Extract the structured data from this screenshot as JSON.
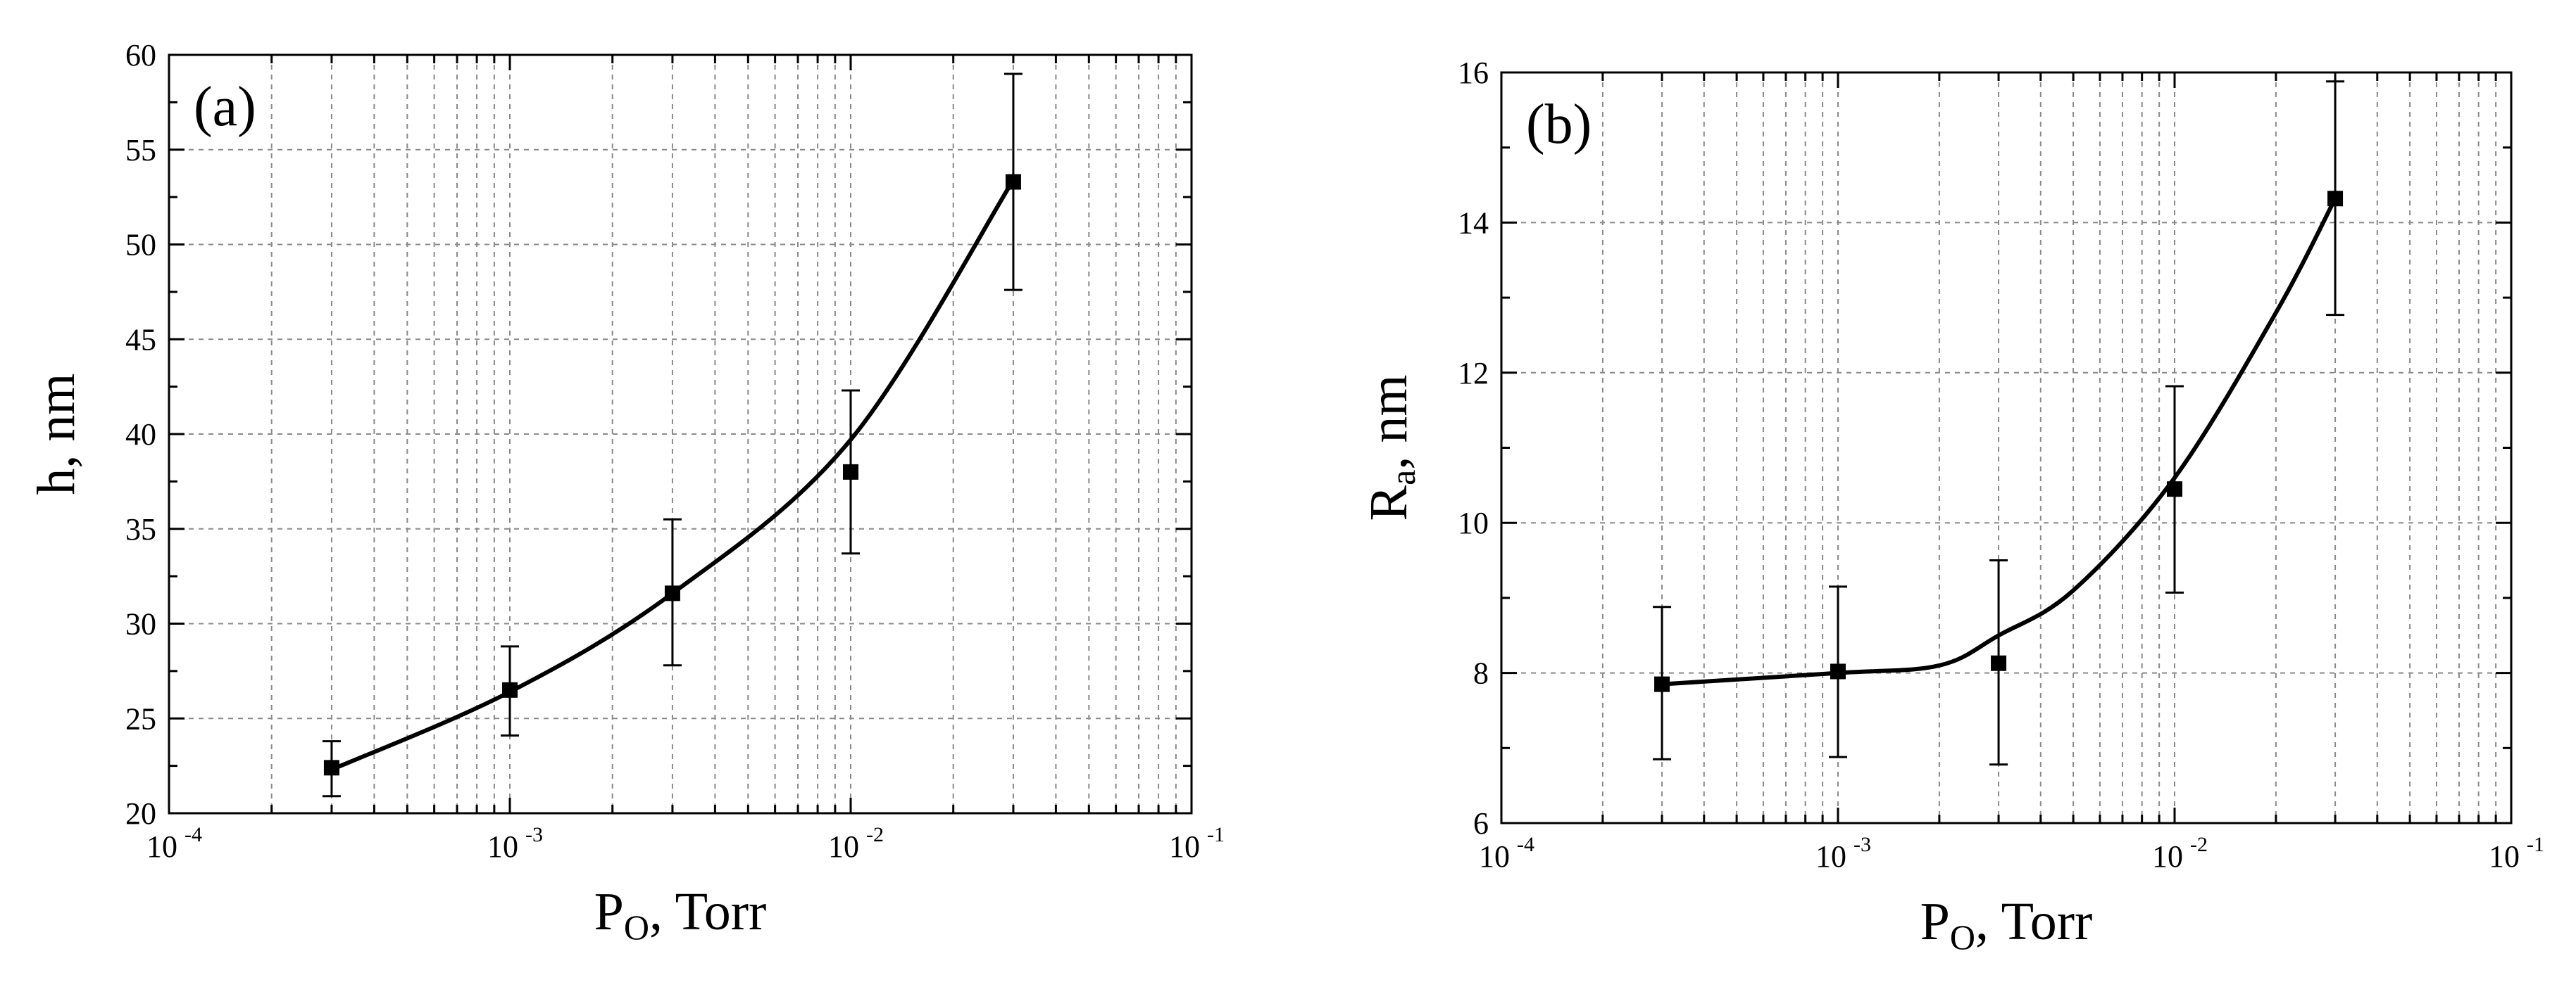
{
  "figure": {
    "panels": [
      {
        "panel_label": "(a)",
        "x_label": {
          "main": "P",
          "sub": "O",
          "rest": ", Torr"
        },
        "y_label": {
          "main": "h, nm",
          "sub": "",
          "rest": ""
        },
        "x_tick_labels": [
          {
            "base": "10",
            "exp": "-4"
          },
          {
            "base": "10",
            "exp": "-3"
          },
          {
            "base": "10",
            "exp": "-2"
          },
          {
            "base": "10",
            "exp": "-1"
          }
        ],
        "y_tick_labels": [
          "20",
          "25",
          "30",
          "35",
          "40",
          "45",
          "50",
          "55",
          "60"
        ]
      },
      {
        "panel_label": "(b)",
        "x_label": {
          "main": "P",
          "sub": "O",
          "rest": ", Torr"
        },
        "y_label": {
          "main": "R",
          "sub": "a",
          "rest": ", nm"
        },
        "x_tick_labels": [
          {
            "base": "10",
            "exp": "-4"
          },
          {
            "base": "10",
            "exp": "-3"
          },
          {
            "base": "10",
            "exp": "-2"
          },
          {
            "base": "10",
            "exp": "-1"
          }
        ],
        "y_tick_labels": [
          "6",
          "8",
          "10",
          "12",
          "14",
          "16"
        ]
      }
    ]
  },
  "chart_data": [
    {
      "type": "scatter",
      "title": "",
      "panel": "(a)",
      "xlabel": "P_O, Torr",
      "ylabel": "h, nm",
      "xscale": "log",
      "xlim": [
        0.0001,
        0.1
      ],
      "ylim": [
        20,
        60
      ],
      "yticks": [
        20,
        25,
        30,
        35,
        40,
        45,
        50,
        55,
        60
      ],
      "grid": true,
      "series": [
        {
          "name": "h",
          "marker": "square",
          "x": [
            0.0003,
            0.001,
            0.003,
            0.01,
            0.03
          ],
          "y": [
            22.4,
            26.5,
            31.6,
            38.0,
            53.3
          ],
          "y_err_low": [
            20.9,
            24.1,
            27.8,
            33.7,
            47.6
          ],
          "y_err_high": [
            23.8,
            28.8,
            35.5,
            42.3,
            59.0
          ]
        }
      ],
      "fit_curve": {
        "x": [
          0.0003,
          0.001,
          0.003,
          0.01,
          0.03
        ],
        "y": [
          22.3,
          26.4,
          31.6,
          39.7,
          53.4
        ]
      }
    },
    {
      "type": "scatter",
      "title": "",
      "panel": "(b)",
      "xlabel": "P_O, Torr",
      "ylabel": "R_a, nm",
      "xscale": "log",
      "xlim": [
        0.0001,
        0.1
      ],
      "ylim": [
        6,
        16
      ],
      "yticks": [
        6,
        8,
        10,
        12,
        14,
        16
      ],
      "grid": true,
      "series": [
        {
          "name": "Ra",
          "marker": "square",
          "x": [
            0.0003,
            0.001,
            0.003,
            0.01,
            0.03
          ],
          "y": [
            7.85,
            8.02,
            8.13,
            10.45,
            14.32
          ],
          "y_err_low": [
            6.85,
            6.88,
            6.78,
            9.07,
            12.77
          ],
          "y_err_high": [
            8.88,
            9.15,
            9.5,
            11.82,
            15.88
          ]
        }
      ],
      "fit_curve": {
        "x": [
          0.0003,
          0.001,
          0.002,
          0.003,
          0.005,
          0.01,
          0.02,
          0.03
        ],
        "y": [
          7.85,
          8.0,
          8.1,
          8.5,
          9.1,
          10.6,
          12.8,
          14.32
        ]
      }
    }
  ]
}
